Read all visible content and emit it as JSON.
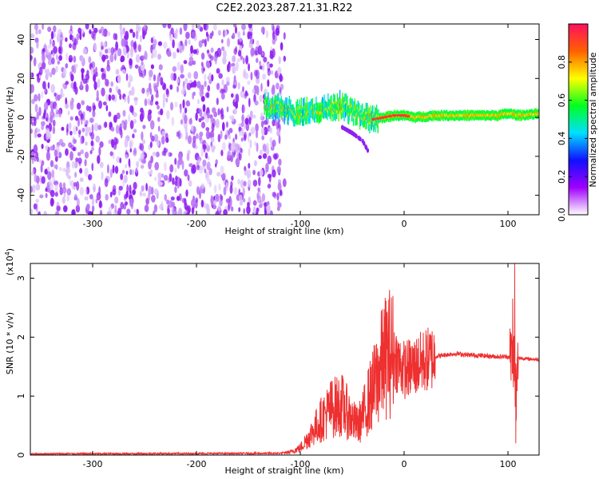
{
  "figure": {
    "title": "C2E2.2023.287.21.31.R22"
  },
  "chart_data": [
    {
      "type": "heatmap",
      "xlabel": "Height of straight line (km)",
      "ylabel": "Frequency (Hz)",
      "xlim": [
        -360,
        130
      ],
      "ylim": [
        -50,
        48
      ],
      "xticks": [
        -300,
        -200,
        -100,
        0,
        100
      ],
      "yticks": [
        -40,
        -20,
        0,
        20,
        40
      ],
      "noise_region_x": [
        -360,
        -115
      ],
      "signal_ridge": {
        "x": [
          -135,
          -120,
          -105,
          -90,
          -75,
          -60,
          -50,
          -40,
          -30,
          -20,
          -10,
          0,
          10,
          30,
          60,
          90,
          100,
          110,
          130
        ],
        "y": [
          6,
          5,
          2,
          3,
          5,
          6,
          3,
          1,
          -1,
          0,
          1,
          1,
          0,
          1,
          1,
          1,
          2,
          1,
          2
        ]
      },
      "tail": {
        "x": [
          -60,
          -50,
          -40,
          -35
        ],
        "y": [
          -5,
          -8,
          -12,
          -17
        ]
      },
      "colorbar": {
        "label": "Normalized spectral amplitude",
        "range": [
          0,
          1
        ],
        "ticks": [
          "0.0",
          "0.2",
          "0.4",
          "0.6",
          "0.8"
        ],
        "tick_values": [
          0.0,
          0.2,
          0.4,
          0.6,
          0.8
        ],
        "colors": [
          "#ffffff",
          "#a000ff",
          "#1010ff",
          "#00e0ff",
          "#00ff20",
          "#ffff00",
          "#ff6000",
          "#ff1060"
        ]
      },
      "noise_color": "#8f20f0"
    },
    {
      "type": "line",
      "xlabel": "Height of straight line (km)",
      "ylabel": "SNR (10 * v/v)",
      "scale_label": "(x10",
      "scale_exponent": "4",
      "scale_suffix": ")",
      "xlim": [
        -360,
        130
      ],
      "ylim": [
        0,
        3.25
      ],
      "xticks": [
        -300,
        -200,
        -100,
        0,
        100
      ],
      "yticks": [
        0,
        1,
        2,
        3
      ],
      "line_color": "#ee3030",
      "envelope": {
        "x": [
          -360,
          -120,
          -110,
          -100,
          -90,
          -80,
          -70,
          -60,
          -50,
          -45,
          -40,
          -35,
          -30,
          -25,
          -20,
          -15,
          -10,
          -5,
          0,
          10,
          20,
          30,
          40,
          50,
          60,
          70,
          80,
          90,
          100,
          103,
          105,
          107,
          108,
          110,
          120,
          130
        ],
        "y": [
          0.02,
          0.03,
          0.05,
          0.12,
          0.35,
          0.6,
          0.8,
          0.85,
          0.6,
          0.5,
          0.65,
          0.9,
          1.1,
          1.35,
          1.6,
          1.75,
          1.7,
          1.55,
          1.45,
          1.5,
          1.6,
          1.67,
          1.7,
          1.72,
          1.7,
          1.69,
          1.68,
          1.67,
          1.67,
          1.66,
          1.8,
          1.2,
          1.0,
          1.65,
          1.63,
          1.62
        ]
      },
      "spikes": {
        "x": [
          -30,
          -20,
          -12,
          -5,
          8,
          104.5,
          106.5,
          107.5
        ],
        "y": [
          1.3,
          1.9,
          1.95,
          1.85,
          1.85,
          2.65,
          3.25,
          0.2
        ]
      }
    }
  ]
}
